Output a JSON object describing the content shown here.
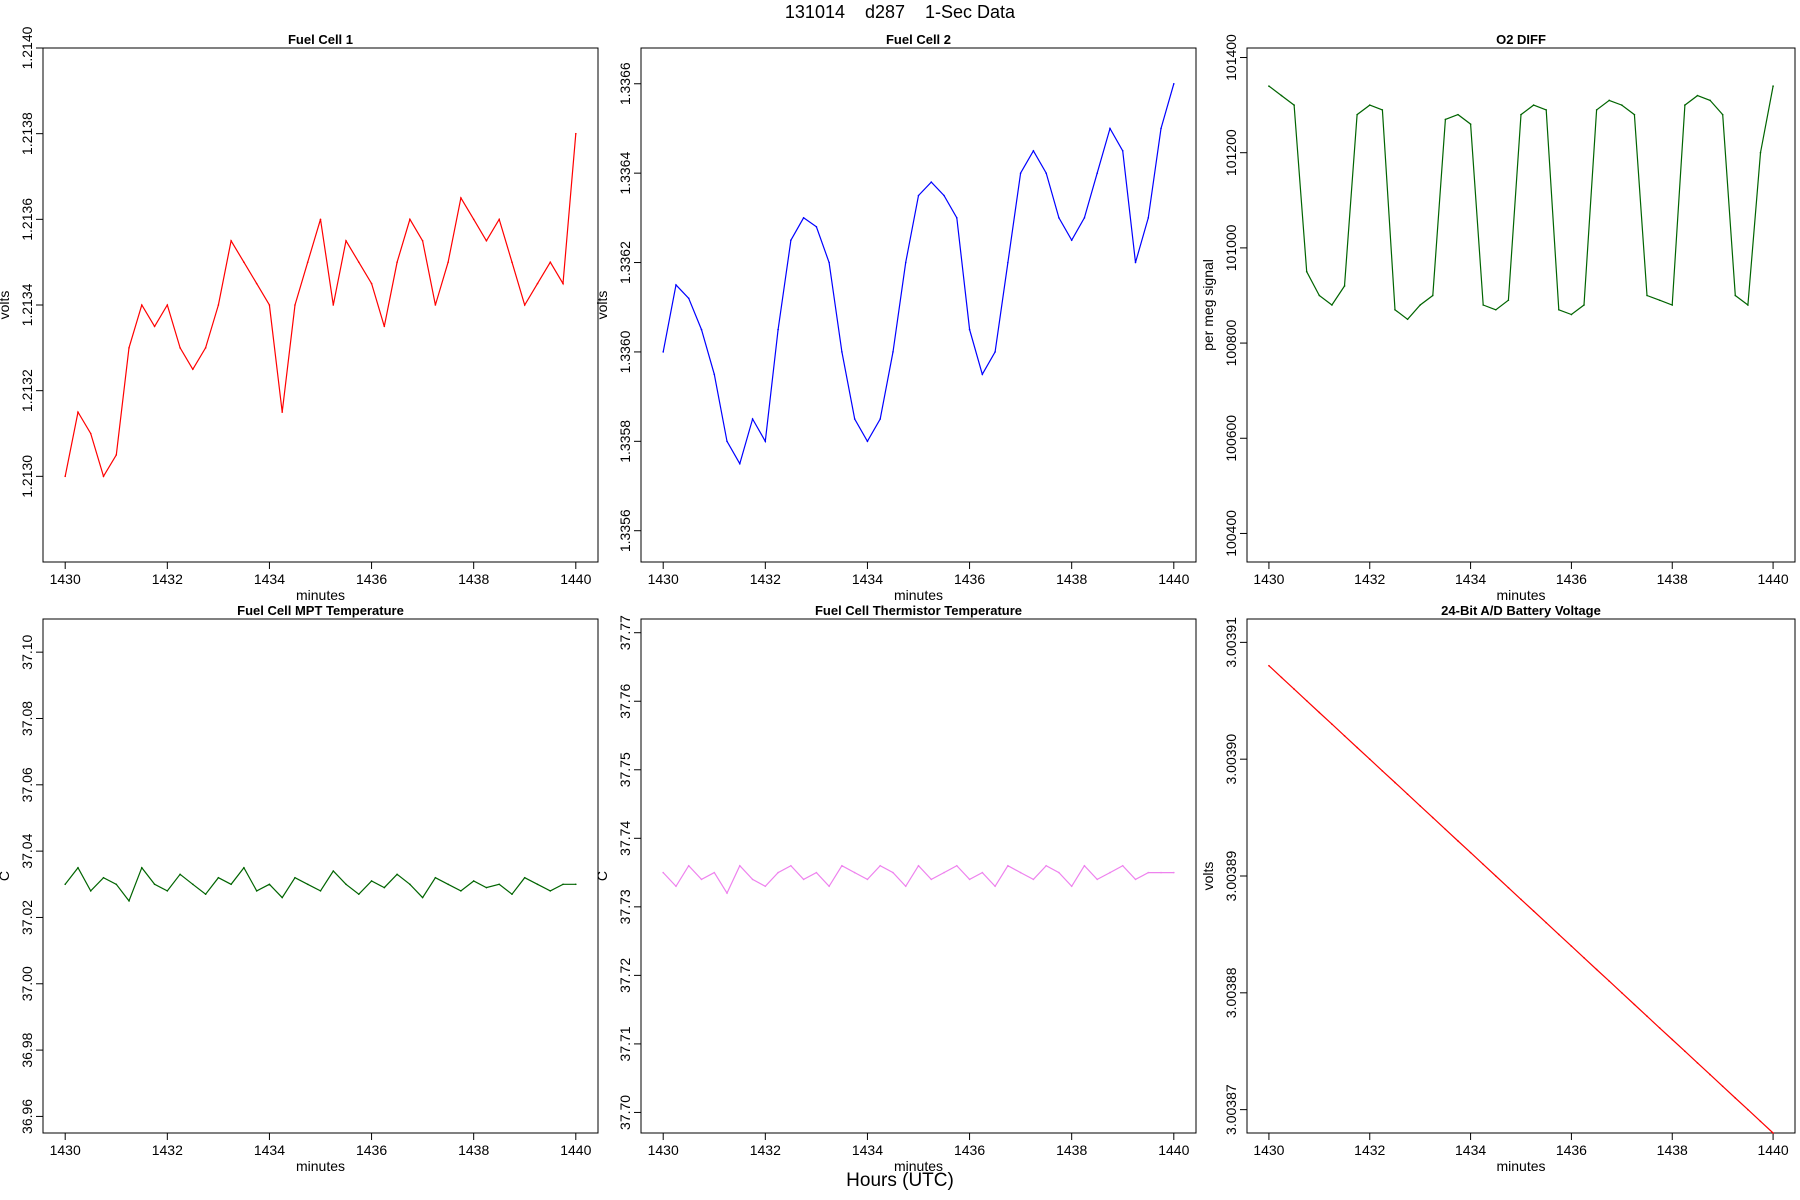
{
  "figure": {
    "title": "131014    d287    1-Sec Data",
    "xlabel": "Hours (UTC)"
  },
  "chart_data": [
    {
      "type": "line",
      "title": "Fuel Cell 1",
      "xlabel": "minutes",
      "ylabel": "volts",
      "color": "#ff0000",
      "xlim": [
        1430,
        1440
      ],
      "ylim": [
        1.2128,
        1.214
      ],
      "xticks": [
        1430,
        1432,
        1434,
        1436,
        1438,
        1440
      ],
      "yticks": [
        "1.2130",
        "1.2132",
        "1.2134",
        "1.2136",
        "1.2138",
        "1.2140"
      ],
      "grid": false,
      "x_start": 1430,
      "x_step": 0.25,
      "values": [
        1.213,
        1.21315,
        1.2131,
        1.213,
        1.21305,
        1.2133,
        1.2134,
        1.21335,
        1.2134,
        1.2133,
        1.21325,
        1.2133,
        1.2134,
        1.21355,
        1.2135,
        1.21345,
        1.2134,
        1.21315,
        1.2134,
        1.2135,
        1.2136,
        1.2134,
        1.21355,
        1.2135,
        1.21345,
        1.21335,
        1.2135,
        1.2136,
        1.21355,
        1.2134,
        1.2135,
        1.21365,
        1.2136,
        1.21355,
        1.2136,
        1.2135,
        1.2134,
        1.21345,
        1.2135,
        1.21345,
        1.2138
      ]
    },
    {
      "type": "line",
      "title": "Fuel Cell 2",
      "xlabel": "minutes",
      "ylabel": "volts",
      "color": "#0000ff",
      "xlim": [
        1430,
        1440
      ],
      "ylim": [
        1.33553,
        1.33668
      ],
      "xticks": [
        1430,
        1432,
        1434,
        1436,
        1438,
        1440
      ],
      "yticks": [
        "1.3356",
        "1.3358",
        "1.3360",
        "1.3362",
        "1.3364",
        "1.3366"
      ],
      "grid": false,
      "x_start": 1430,
      "x_step": 0.25,
      "values": [
        1.336,
        1.33615,
        1.33612,
        1.33605,
        1.33595,
        1.3358,
        1.33575,
        1.33585,
        1.3358,
        1.33605,
        1.33625,
        1.3363,
        1.33628,
        1.3362,
        1.336,
        1.33585,
        1.3358,
        1.33585,
        1.336,
        1.3362,
        1.33635,
        1.33638,
        1.33635,
        1.3363,
        1.33605,
        1.33595,
        1.336,
        1.3362,
        1.3364,
        1.33645,
        1.3364,
        1.3363,
        1.33625,
        1.3363,
        1.3364,
        1.3365,
        1.33645,
        1.3362,
        1.3363,
        1.3365,
        1.3366
      ]
    },
    {
      "type": "line",
      "title": "O2 DIFF",
      "xlabel": "minutes",
      "ylabel": "per meg signal",
      "color": "#006400",
      "xlim": [
        1430,
        1440
      ],
      "ylim": [
        100340,
        101420
      ],
      "xticks": [
        1430,
        1432,
        1434,
        1436,
        1438,
        1440
      ],
      "yticks": [
        "100400",
        "100600",
        "100800",
        "101000",
        "101200",
        "101400"
      ],
      "grid": false,
      "x_start": 1430,
      "x_step": 0.25,
      "values": [
        101340,
        101320,
        101300,
        100950,
        100900,
        100880,
        100920,
        101280,
        101300,
        101290,
        100870,
        100850,
        100880,
        100900,
        101270,
        101280,
        101260,
        100880,
        100870,
        100890,
        101280,
        101300,
        101290,
        100870,
        100860,
        100880,
        101290,
        101310,
        101300,
        101280,
        100900,
        100890,
        100880,
        101300,
        101320,
        101310,
        101280,
        100900,
        100880,
        101200,
        101340
      ]
    },
    {
      "type": "line",
      "title": "Fuel Cell MPT Temperature",
      "xlabel": "minutes",
      "ylabel": "C",
      "color": "#006400",
      "xlim": [
        1430,
        1440
      ],
      "ylim": [
        36.955,
        37.11
      ],
      "xticks": [
        1430,
        1432,
        1434,
        1436,
        1438,
        1440
      ],
      "yticks": [
        "36.96",
        "36.98",
        "37.00",
        "37.02",
        "37.04",
        "37.06",
        "37.08",
        "37.10"
      ],
      "grid": false,
      "x_start": 1430,
      "x_step": 0.25,
      "values": [
        37.03,
        37.035,
        37.028,
        37.032,
        37.03,
        37.025,
        37.035,
        37.03,
        37.028,
        37.033,
        37.03,
        37.027,
        37.032,
        37.03,
        37.035,
        37.028,
        37.03,
        37.026,
        37.032,
        37.03,
        37.028,
        37.034,
        37.03,
        37.027,
        37.031,
        37.029,
        37.033,
        37.03,
        37.026,
        37.032,
        37.03,
        37.028,
        37.031,
        37.029,
        37.03,
        37.027,
        37.032,
        37.03,
        37.028,
        37.03,
        37.03
      ]
    },
    {
      "type": "line",
      "title": "Fuel Cell Thermistor Temperature",
      "xlabel": "minutes",
      "ylabel": "C",
      "color": "#ee82ee",
      "xlim": [
        1430,
        1440
      ],
      "ylim": [
        37.697,
        37.772
      ],
      "xticks": [
        1430,
        1432,
        1434,
        1436,
        1438,
        1440
      ],
      "yticks": [
        "37.70",
        "37.71",
        "37.72",
        "37.73",
        "37.74",
        "37.75",
        "37.76",
        "37.77"
      ],
      "grid": false,
      "x_start": 1430,
      "x_step": 0.25,
      "values": [
        37.735,
        37.733,
        37.736,
        37.734,
        37.735,
        37.732,
        37.736,
        37.734,
        37.733,
        37.735,
        37.736,
        37.734,
        37.735,
        37.733,
        37.736,
        37.735,
        37.734,
        37.736,
        37.735,
        37.733,
        37.736,
        37.734,
        37.735,
        37.736,
        37.734,
        37.735,
        37.733,
        37.736,
        37.735,
        37.734,
        37.736,
        37.735,
        37.733,
        37.736,
        37.734,
        37.735,
        37.736,
        37.734,
        37.735,
        37.735,
        37.735
      ]
    },
    {
      "type": "line",
      "title": "24-Bit A/D Battery Voltage",
      "xlabel": "minutes",
      "ylabel": "volts",
      "color": "#ff0000",
      "xlim": [
        1430,
        1440
      ],
      "ylim": [
        3.003868,
        3.003912
      ],
      "xticks": [
        1430,
        1432,
        1434,
        1436,
        1438,
        1440
      ],
      "yticks": [
        "3.00387",
        "3.00388",
        "3.00389",
        "3.00390",
        "3.00391"
      ],
      "grid": false,
      "x_start": 1430,
      "x_step": 0.25,
      "values": [
        3.003908,
        3.003907,
        3.003906,
        3.003905,
        3.003904,
        3.003903,
        3.003902,
        3.003901,
        3.0039,
        3.003899,
        3.003898,
        3.003897,
        3.003896,
        3.003895,
        3.003894,
        3.003893,
        3.003892,
        3.003891,
        3.00389,
        3.003889,
        3.003888,
        3.003887,
        3.003886,
        3.003885,
        3.003884,
        3.003883,
        3.003882,
        3.003881,
        3.00388,
        3.003879,
        3.003878,
        3.003877,
        3.003876,
        3.003875,
        3.003874,
        3.003873,
        3.003872,
        3.003871,
        3.00387,
        3.003869,
        3.003868
      ]
    }
  ]
}
